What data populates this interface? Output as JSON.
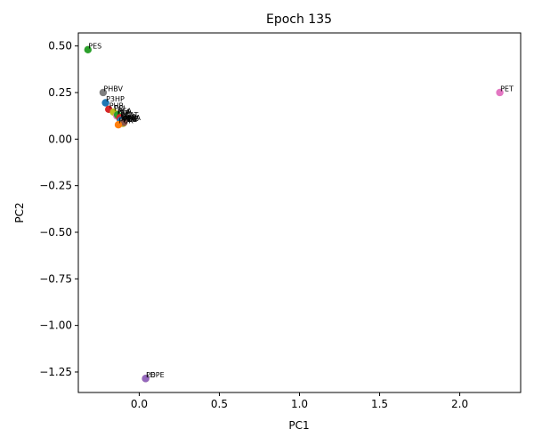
{
  "chart_data": {
    "type": "scatter",
    "title": "Epoch 135",
    "xlabel": "PC1",
    "ylabel": "PC2",
    "xlim": [
      -0.38,
      2.38
    ],
    "ylim": [
      -1.36,
      0.57
    ],
    "x_ticks": [
      0.0,
      0.5,
      1.0,
      1.5,
      2.0
    ],
    "x_tick_labels": [
      "0.0",
      "0.5",
      "1.0",
      "1.5",
      "2.0"
    ],
    "y_ticks": [
      0.5,
      0.25,
      0.0,
      -0.25,
      -0.5,
      -0.75,
      -1.0,
      -1.25
    ],
    "y_tick_labels": [
      "0.50",
      "0.25",
      "0.00",
      "−0.25",
      "−0.50",
      "−0.75",
      "−1.00",
      "−1.25"
    ],
    "grid": false,
    "points": [
      {
        "label": "PES",
        "x": -0.32,
        "y": 0.48,
        "color": "#2ca02c"
      },
      {
        "label": "PHBV",
        "x": -0.225,
        "y": 0.25,
        "color": "#7f7f7f"
      },
      {
        "label": "P3HP",
        "x": -0.21,
        "y": 0.195,
        "color": "#1f77b4"
      },
      {
        "label": "PHB",
        "x": -0.19,
        "y": 0.16,
        "color": "#d62728"
      },
      {
        "label": "PCL",
        "x": -0.16,
        "y": 0.145,
        "color": "#bcbd22"
      },
      {
        "label": "PLA",
        "x": -0.14,
        "y": 0.125,
        "color": "#e377c2"
      },
      {
        "label": "PBAT",
        "x": -0.12,
        "y": 0.11,
        "color": "#8c564b"
      },
      {
        "label": "PBSA",
        "x": -0.11,
        "y": 0.095,
        "color": "#17becf"
      },
      {
        "label": "PBS",
        "x": -0.105,
        "y": 0.085,
        "color": "#9467bd"
      },
      {
        "label": "PEA",
        "x": -0.135,
        "y": 0.13,
        "color": "#2ca02c"
      },
      {
        "label": "PPL",
        "x": -0.12,
        "y": 0.115,
        "color": "#d62728"
      },
      {
        "label": "PHO",
        "x": -0.115,
        "y": 0.1,
        "color": "#1f77b4"
      },
      {
        "label": "PEG",
        "x": -0.105,
        "y": 0.09,
        "color": "#7f7f7f"
      },
      {
        "label": "PBE",
        "x": -0.1,
        "y": 0.085,
        "color": "#bcbd22"
      },
      {
        "label": "PHB",
        "x": -0.095,
        "y": 0.09,
        "color": "#8c564b"
      },
      {
        "label": "PUR",
        "x": -0.13,
        "y": 0.077,
        "color": "#ff7f0e"
      },
      {
        "label": "PET",
        "x": 2.25,
        "y": 0.25,
        "color": "#e377c2"
      },
      {
        "label": "PE",
        "x": 0.04,
        "y": -1.285,
        "color": "#8c564b"
      },
      {
        "label": "LDPE",
        "x": 0.04,
        "y": -1.285,
        "color": "#9467bd"
      }
    ]
  }
}
